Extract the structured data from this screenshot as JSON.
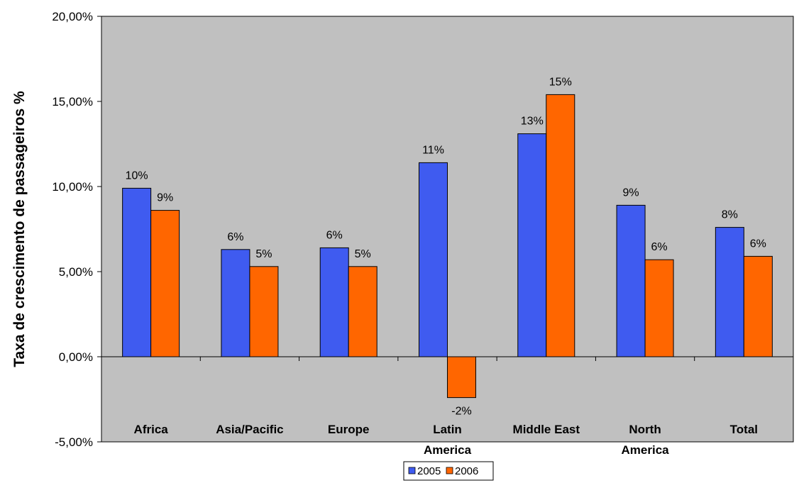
{
  "chart_data": {
    "type": "bar",
    "title": "",
    "xlabel": "",
    "ylabel": "Taxa de crescimento de passageiros %",
    "categories": [
      [
        "Africa"
      ],
      [
        "Asia/Pacific"
      ],
      [
        "Europe"
      ],
      [
        "Latin",
        "America"
      ],
      [
        "Middle East"
      ],
      [
        "North",
        "America"
      ],
      [
        "Total"
      ]
    ],
    "series": [
      {
        "name": "2005",
        "color": "#3f5bf0",
        "values": [
          0.099,
          0.063,
          0.064,
          0.114,
          0.131,
          0.089,
          0.076
        ],
        "labels": [
          "10%",
          "6%",
          "6%",
          "11%",
          "13%",
          "9%",
          "8%"
        ]
      },
      {
        "name": "2006",
        "color": "#ff6600",
        "values": [
          0.086,
          0.053,
          0.053,
          -0.024,
          0.154,
          0.057,
          0.059
        ],
        "labels": [
          "9%",
          "5%",
          "5%",
          "-2%",
          "15%",
          "6%",
          "6%"
        ]
      }
    ],
    "ylim": [
      -0.05,
      0.2
    ],
    "yticks": [
      -0.05,
      0,
      0.05,
      0.1,
      0.15,
      0.2
    ],
    "ytick_labels": [
      "-5,00%",
      "0,00%",
      "5,00%",
      "10,00%",
      "15,00%",
      "20,00%"
    ],
    "plot_background": "#c0c0c0",
    "grid": false,
    "legend": "bottom"
  }
}
